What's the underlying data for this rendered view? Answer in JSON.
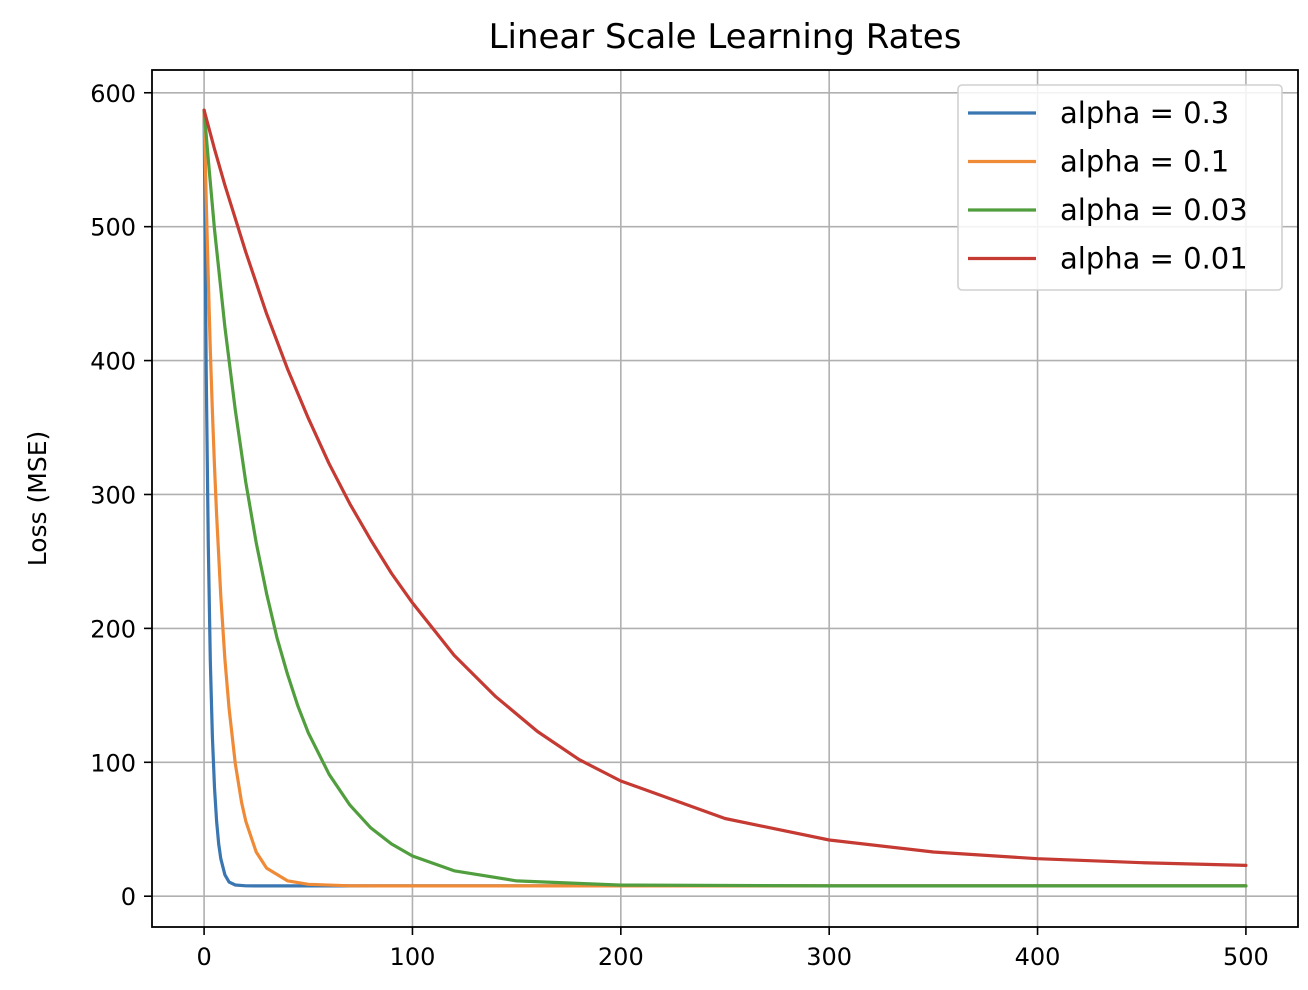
{
  "chart_data": {
    "type": "line",
    "title": "Linear Scale Learning Rates",
    "xlabel": "",
    "ylabel": "Loss (MSE)",
    "xlim": [
      -25,
      525
    ],
    "ylim": [
      -23,
      617
    ],
    "xticks": [
      0,
      100,
      200,
      300,
      400,
      500
    ],
    "yticks": [
      0,
      100,
      200,
      300,
      400,
      500,
      600
    ],
    "grid": true,
    "legend_position": "top-right",
    "series": [
      {
        "name": "alpha = 0.3",
        "color": "#3a76b0",
        "x": [
          0,
          1,
          2,
          3,
          4,
          5,
          6,
          7,
          8,
          10,
          12,
          15,
          20,
          30,
          50,
          100,
          200,
          300,
          400,
          500
        ],
        "y": [
          587,
          392,
          262,
          176,
          119,
          81,
          56,
          39,
          28,
          16,
          10.5,
          8.4,
          7.8,
          7.7,
          7.7,
          7.7,
          7.7,
          7.7,
          7.7,
          7.7
        ]
      },
      {
        "name": "alpha = 0.1",
        "color": "#ef8a37",
        "x": [
          0,
          1,
          2,
          3,
          4,
          5,
          6,
          8,
          10,
          12,
          15,
          18,
          20,
          25,
          30,
          40,
          50,
          70,
          100,
          200,
          300,
          400,
          500
        ],
        "y": [
          587,
          520,
          461,
          408,
          362,
          321,
          285,
          224,
          177,
          140,
          99,
          70,
          56,
          33,
          21,
          11.5,
          8.9,
          7.8,
          7.7,
          7.7,
          7.7,
          7.7,
          7.7
        ]
      },
      {
        "name": "alpha = 0.03",
        "color": "#519e3e",
        "x": [
          0,
          2,
          5,
          10,
          15,
          20,
          25,
          30,
          35,
          40,
          45,
          50,
          60,
          70,
          80,
          90,
          100,
          120,
          150,
          200,
          300,
          400,
          500
        ],
        "y": [
          587,
          550,
          498,
          425,
          363,
          309,
          264,
          226,
          193,
          166,
          142,
          122,
          91,
          68,
          51,
          39,
          30,
          19,
          11.4,
          8.3,
          7.7,
          7.7,
          7.7
        ]
      },
      {
        "name": "alpha = 0.01",
        "color": "#c53a32",
        "x": [
          0,
          5,
          10,
          20,
          30,
          40,
          50,
          60,
          70,
          80,
          90,
          100,
          120,
          140,
          160,
          180,
          200,
          250,
          300,
          350,
          400,
          450,
          500
        ],
        "y": [
          587,
          558,
          531,
          481,
          435,
          394,
          357,
          323,
          293,
          266,
          241,
          219,
          180,
          149,
          123,
          102,
          86,
          58,
          42,
          33,
          28,
          25,
          23
        ]
      }
    ]
  }
}
